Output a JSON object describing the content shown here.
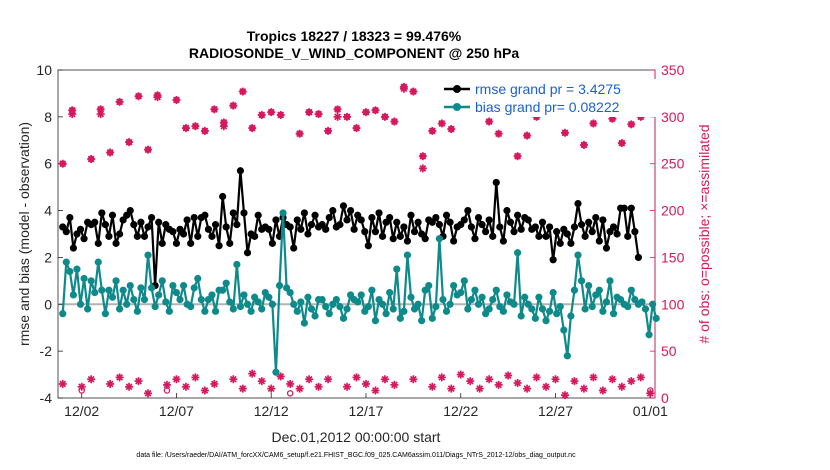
{
  "chart_data": {
    "type": "line",
    "title": "Tropics 18227 / 18323 = 99.476%",
    "subtitle": "RADIOSONDE_V_WIND_COMPONENT @ 250 hPa",
    "xlabel": "Dec.01,2012 00:00:00 start",
    "ylabel_left": "rmse and bias (model - observation)",
    "ylabel_right": "# of obs: o=possible; ×=assimilated",
    "footer": "data file: /Users/raeder/DAI/ATM_forcXX/CAM6_setup/f.e21.FHIST_BGC.f09_025.CAM6assim.011/Diags_NTrS_2012-12/obs_diag_output.nc",
    "xlim": [
      0,
      31.5
    ],
    "ylim_left": [
      -4,
      10
    ],
    "ylim_right": [
      0,
      350
    ],
    "x_ticks": [
      {
        "value": 1.25,
        "label": "12/02"
      },
      {
        "value": 6.25,
        "label": "12/07"
      },
      {
        "value": 11.25,
        "label": "12/12"
      },
      {
        "value": 16.25,
        "label": "12/17"
      },
      {
        "value": 21.25,
        "label": "12/22"
      },
      {
        "value": 26.25,
        "label": "12/27"
      },
      {
        "value": 31.25,
        "label": "01/01"
      }
    ],
    "y_ticks_left": [
      -4,
      -2,
      0,
      2,
      4,
      6,
      8,
      10
    ],
    "y_ticks_right": [
      0,
      50,
      100,
      150,
      200,
      250,
      300,
      350
    ],
    "colors": {
      "rmse": "#000000",
      "bias": "#0f8a8a",
      "obs": "#d6195e",
      "zero_line": "#b3b3b3",
      "legend_text": "#1a5fd6"
    },
    "series": [
      {
        "name": "rmse grand pr = 3.4275",
        "axis": "left",
        "values": [
          3.3,
          3.1,
          3.7,
          2.4,
          3.0,
          3.2,
          2.8,
          3.5,
          3.4,
          3.5,
          2.6,
          3.9,
          3.4,
          2.9,
          3.8,
          2.6,
          3.0,
          3.6,
          3.8,
          4.0,
          3.4,
          2.9,
          3.5,
          2.9,
          3.3,
          3.7,
          0.8,
          3.5,
          2.6,
          3.4,
          3.2,
          3.1,
          2.6,
          3.2,
          3.0,
          3.6,
          2.6,
          3.7,
          2.9,
          3.7,
          3.8,
          3.2,
          2.9,
          3.4,
          2.5,
          4.6,
          3.3,
          2.6,
          3.9,
          3.4,
          5.7,
          3.9,
          2.2,
          3.0,
          2.9,
          3.8,
          3.2,
          3.3,
          3.2,
          2.6,
          3.6,
          2.9,
          3.7,
          3.4,
          3.3,
          2.4,
          3.6,
          3.2,
          3.9,
          3.0,
          3.4,
          3.8,
          3.3,
          3.4,
          3.2,
          3.7,
          4.0,
          3.3,
          3.4,
          4.2,
          3.6,
          4.0,
          3.2,
          3.8,
          3.6,
          3.1,
          2.5,
          3.7,
          3.1,
          3.9,
          2.9,
          3.5,
          3.7,
          2.8,
          3.5,
          2.9,
          3.3,
          2.7,
          3.8,
          3.1,
          3.5,
          3.0,
          2.8,
          3.6,
          3.5,
          3.7,
          3.4,
          2.9,
          3.8,
          3.5,
          2.7,
          3.3,
          3.4,
          3.6,
          4.0,
          3.3,
          2.8,
          3.7,
          3.4,
          3.1,
          3.6,
          2.9,
          5.2,
          3.3,
          2.7,
          4.0,
          3.5,
          3.1,
          3.8,
          3.2,
          3.7,
          3.6,
          3.2,
          3.3,
          2.9,
          3.5,
          2.9,
          3.3,
          1.9,
          3.1,
          2.6,
          3.2,
          3.0,
          2.6,
          3.3,
          4.3,
          3.4,
          2.9,
          3.5,
          3.1,
          3.7,
          2.7,
          3.6,
          2.4,
          3.1,
          3.3,
          3.0,
          4.1,
          4.1,
          2.9,
          4.1,
          3.1,
          2.0
        ]
      },
      {
        "name": "bias grand pr= 0.08222",
        "axis": "left",
        "values": [
          -0.4,
          1.8,
          1.4,
          0.4,
          1.5,
          0.0,
          1.1,
          -0.2,
          1.0,
          0.5,
          1.8,
          0.6,
          -0.4,
          0.6,
          0.3,
          1.0,
          -0.2,
          0.6,
          0.0,
          0.8,
          0.2,
          -0.3,
          0.7,
          0.2,
          2.1,
          0.7,
          -0.1,
          0.4,
          1.0,
          0.1,
          -0.3,
          0.8,
          0.5,
          0.2,
          0.8,
          0.0,
          -0.1,
          0.7,
          1.1,
          0.2,
          -0.3,
          0.2,
          0.4,
          -0.3,
          0.6,
          0.6,
          0.9,
          0.1,
          -0.2,
          1.7,
          -0.1,
          0.4,
          0.0,
          -0.3,
          0.3,
          0.1,
          -0.2,
          0.5,
          0.3,
          0.0,
          -2.9,
          0.8,
          3.9,
          0.7,
          0.5,
          0.0,
          -0.3,
          0.1,
          -0.8,
          0.3,
          -0.2,
          -0.5,
          0.2,
          0.2,
          -0.1,
          -0.4,
          0.0,
          0.2,
          -0.1,
          -0.6,
          -0.2,
          0.4,
          0.2,
          0.1,
          0.4,
          -0.3,
          -0.1,
          0.6,
          -0.7,
          0.2,
          0.0,
          -0.4,
          0.5,
          -0.2,
          1.5,
          -0.6,
          -0.3,
          2.1,
          0.3,
          -0.2,
          0.0,
          -0.7,
          0.6,
          0.8,
          -0.6,
          -0.1,
          2.8,
          0.2,
          -0.3,
          0.0,
          0.8,
          0.4,
          0.5,
          1.0,
          -0.2,
          0.2,
          0.6,
          0.0,
          0.3,
          -0.4,
          -0.2,
          0.2,
          0.6,
          -0.1,
          -0.3,
          0.4,
          0.1,
          0.0,
          2.2,
          -0.5,
          0.3,
          0.0,
          -0.2,
          -0.6,
          0.3,
          -0.2,
          -0.7,
          -0.3,
          0.5,
          -0.4,
          -0.1,
          -1.1,
          -2.2,
          -0.5,
          0.6,
          2.1,
          1.0,
          -0.2,
          0.8,
          -0.1,
          0.4,
          0.6,
          -0.3,
          0.1,
          1.0,
          -0.4,
          0.3,
          0.2,
          0.0,
          -0.1,
          0.6,
          0.2,
          0.0,
          0.1,
          -0.2,
          -1.3,
          0.0,
          -0.6
        ]
      }
    ],
    "obs_possible": [
      {
        "x": 0.25,
        "y": 250
      },
      {
        "x": 0.75,
        "y": 307
      },
      {
        "x": 1.25,
        "y": 8
      },
      {
        "x": 1.75,
        "y": 255
      },
      {
        "x": 2.25,
        "y": 308
      },
      {
        "x": 2.75,
        "y": 262
      },
      {
        "x": 3.25,
        "y": 316
      },
      {
        "x": 3.75,
        "y": 273
      },
      {
        "x": 4.25,
        "y": 322
      },
      {
        "x": 4.75,
        "y": 265
      },
      {
        "x": 5.25,
        "y": 323
      },
      {
        "x": 5.75,
        "y": 8
      },
      {
        "x": 6.25,
        "y": 318
      },
      {
        "x": 6.75,
        "y": 288
      },
      {
        "x": 7.25,
        "y": 290
      },
      {
        "x": 7.75,
        "y": 285
      },
      {
        "x": 8.25,
        "y": 308
      },
      {
        "x": 8.75,
        "y": 294
      },
      {
        "x": 9.25,
        "y": 312
      },
      {
        "x": 9.75,
        "y": 327
      },
      {
        "x": 10.25,
        "y": 288
      },
      {
        "x": 10.75,
        "y": 302
      },
      {
        "x": 11.25,
        "y": 305
      },
      {
        "x": 11.75,
        "y": 302
      },
      {
        "x": 12.25,
        "y": 5
      },
      {
        "x": 12.75,
        "y": 282
      },
      {
        "x": 13.25,
        "y": 305
      },
      {
        "x": 13.75,
        "y": 303
      },
      {
        "x": 14.25,
        "y": 285
      },
      {
        "x": 14.75,
        "y": 308
      },
      {
        "x": 15.25,
        "y": 300
      },
      {
        "x": 15.75,
        "y": 288
      },
      {
        "x": 16.25,
        "y": 305
      },
      {
        "x": 16.75,
        "y": 307
      },
      {
        "x": 17.25,
        "y": 300
      },
      {
        "x": 17.75,
        "y": 295
      },
      {
        "x": 18.25,
        "y": 332
      },
      {
        "x": 18.75,
        "y": 327
      },
      {
        "x": 19.25,
        "y": 258
      },
      {
        "x": 19.75,
        "y": 285
      },
      {
        "x": 20.25,
        "y": 293
      },
      {
        "x": 20.75,
        "y": 287
      },
      {
        "x": 21.25,
        "y": 308
      },
      {
        "x": 21.75,
        "y": 318
      },
      {
        "x": 22.25,
        "y": 322
      },
      {
        "x": 22.75,
        "y": 295
      },
      {
        "x": 23.25,
        "y": 282
      },
      {
        "x": 23.75,
        "y": 310
      },
      {
        "x": 24.25,
        "y": 258
      },
      {
        "x": 24.75,
        "y": 280
      },
      {
        "x": 25.25,
        "y": 300
      },
      {
        "x": 25.75,
        "y": 318
      },
      {
        "x": 26.25,
        "y": 305
      },
      {
        "x": 26.75,
        "y": 283
      },
      {
        "x": 27.25,
        "y": 320
      },
      {
        "x": 27.75,
        "y": 270
      },
      {
        "x": 28.25,
        "y": 293
      },
      {
        "x": 28.75,
        "y": 320
      },
      {
        "x": 29.25,
        "y": 298
      },
      {
        "x": 29.75,
        "y": 272
      },
      {
        "x": 30.25,
        "y": 292
      },
      {
        "x": 30.75,
        "y": 300
      },
      {
        "x": 31.25,
        "y": 8
      }
    ],
    "obs_assimilated": [
      {
        "x": 0.25,
        "y": 15
      },
      {
        "x": 0.75,
        "y": 303
      },
      {
        "x": 1.25,
        "y": 12
      },
      {
        "x": 1.75,
        "y": 20
      },
      {
        "x": 2.25,
        "y": 303
      },
      {
        "x": 2.75,
        "y": 15
      },
      {
        "x": 3.25,
        "y": 22
      },
      {
        "x": 3.75,
        "y": 12
      },
      {
        "x": 4.25,
        "y": 18
      },
      {
        "x": 4.75,
        "y": 5
      },
      {
        "x": 5.25,
        "y": 321
      },
      {
        "x": 5.75,
        "y": 14
      },
      {
        "x": 6.25,
        "y": 20
      },
      {
        "x": 6.75,
        "y": 12
      },
      {
        "x": 7.25,
        "y": 22
      },
      {
        "x": 7.75,
        "y": 8
      },
      {
        "x": 8.25,
        "y": 15
      },
      {
        "x": 8.75,
        "y": 290
      },
      {
        "x": 9.25,
        "y": 20
      },
      {
        "x": 9.75,
        "y": 10
      },
      {
        "x": 10.25,
        "y": 26
      },
      {
        "x": 10.75,
        "y": 18
      },
      {
        "x": 11.25,
        "y": 10
      },
      {
        "x": 11.75,
        "y": 23
      },
      {
        "x": 12.25,
        "y": 15
      },
      {
        "x": 12.75,
        "y": 10
      },
      {
        "x": 13.25,
        "y": 20
      },
      {
        "x": 13.75,
        "y": 12
      },
      {
        "x": 14.25,
        "y": 20
      },
      {
        "x": 14.75,
        "y": 300
      },
      {
        "x": 15.25,
        "y": 12
      },
      {
        "x": 15.75,
        "y": 22
      },
      {
        "x": 16.25,
        "y": 15
      },
      {
        "x": 16.75,
        "y": 8
      },
      {
        "x": 17.25,
        "y": 20
      },
      {
        "x": 17.75,
        "y": 14
      },
      {
        "x": 18.25,
        "y": 330
      },
      {
        "x": 18.75,
        "y": 20
      },
      {
        "x": 19.25,
        "y": 245
      },
      {
        "x": 19.75,
        "y": 12
      },
      {
        "x": 20.25,
        "y": 22
      },
      {
        "x": 20.75,
        "y": 10
      },
      {
        "x": 21.25,
        "y": 25
      },
      {
        "x": 21.75,
        "y": 18
      },
      {
        "x": 22.25,
        "y": 10
      },
      {
        "x": 22.75,
        "y": 20
      },
      {
        "x": 23.25,
        "y": 14
      },
      {
        "x": 23.75,
        "y": 24
      },
      {
        "x": 24.25,
        "y": 16
      },
      {
        "x": 24.75,
        "y": 10
      },
      {
        "x": 25.25,
        "y": 22
      },
      {
        "x": 25.75,
        "y": 12
      },
      {
        "x": 26.25,
        "y": 20
      },
      {
        "x": 26.75,
        "y": 3
      },
      {
        "x": 27.25,
        "y": 18
      },
      {
        "x": 27.75,
        "y": 10
      },
      {
        "x": 28.25,
        "y": 22
      },
      {
        "x": 28.75,
        "y": 8
      },
      {
        "x": 29.25,
        "y": 20
      },
      {
        "x": 29.75,
        "y": 12
      },
      {
        "x": 30.25,
        "y": 18
      },
      {
        "x": 30.75,
        "y": 22
      },
      {
        "x": 31.25,
        "y": 5
      }
    ]
  }
}
